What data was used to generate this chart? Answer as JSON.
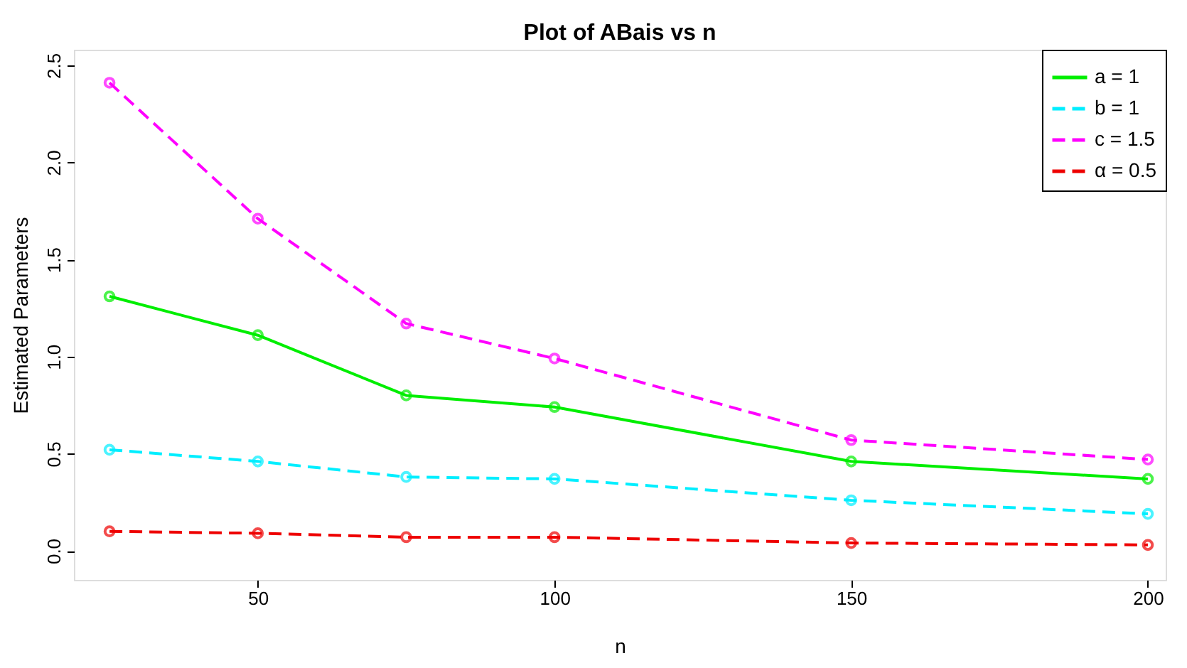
{
  "chart_data": {
    "type": "line",
    "title": "Plot of ABais vs n",
    "xlabel": "n",
    "ylabel": "Estimated Parameters",
    "x": [
      25,
      50,
      75,
      100,
      150,
      200
    ],
    "series": [
      {
        "name": "a = 1",
        "color": "#00ee00",
        "line_style": "solid",
        "values": [
          1.31,
          1.11,
          0.8,
          0.74,
          0.46,
          0.37
        ]
      },
      {
        "name": "b = 1",
        "color": "#00eeff",
        "line_style": "dashed",
        "values": [
          0.52,
          0.46,
          0.38,
          0.37,
          0.26,
          0.19
        ]
      },
      {
        "name": "c = 1.5",
        "color": "#ff00ff",
        "line_style": "dashed",
        "values": [
          2.41,
          1.71,
          1.17,
          0.99,
          0.57,
          0.47
        ]
      },
      {
        "name": "α = 0.5",
        "color": "#ee0000",
        "line_style": "dashed",
        "values": [
          0.1,
          0.09,
          0.07,
          0.07,
          0.04,
          0.03
        ]
      }
    ],
    "xlim": [
      19,
      203
    ],
    "xticks": [
      50,
      100,
      150,
      200
    ],
    "ylim": [
      -0.15,
      2.58
    ],
    "yticks": [
      {
        "value": 0,
        "label": "0.0"
      },
      0.5,
      {
        "value": 1,
        "label": "1.0"
      },
      1.5,
      {
        "value": 2,
        "label": "2.0"
      },
      2.5
    ],
    "marker": "circle",
    "grid": false,
    "legend": "top right"
  }
}
